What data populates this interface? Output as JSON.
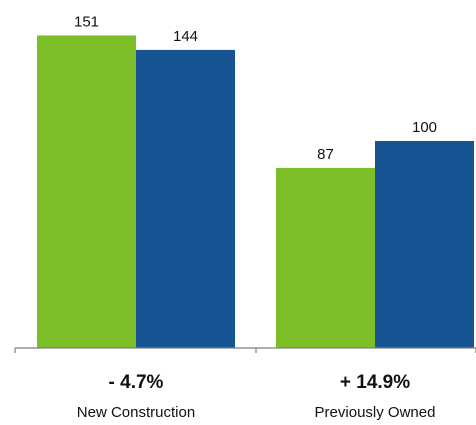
{
  "colors": {
    "series_1": "#7BBE27",
    "series_2": "#165493",
    "axis": "#7f7f7f"
  },
  "chart_data": {
    "type": "bar",
    "categories": [
      "New Construction",
      "Previously Owned"
    ],
    "series": [
      {
        "values": [
          151,
          87
        ]
      },
      {
        "values": [
          144,
          100
        ]
      }
    ],
    "change_labels": [
      "- 4.7%",
      "+ 14.9%"
    ],
    "ylim": [
      0,
      160
    ],
    "grid": false,
    "legend": "none"
  }
}
